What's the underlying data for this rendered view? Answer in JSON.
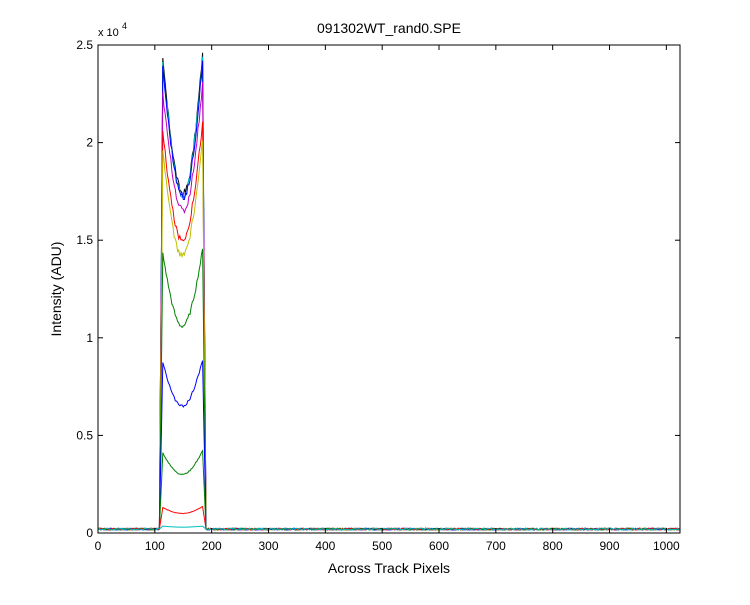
{
  "chart_data": {
    "type": "line",
    "title": "091302WT_rand0.SPE",
    "xlabel": "Across Track Pixels",
    "ylabel": "Intensity (ADU)",
    "xlim": [
      0,
      1024
    ],
    "ylim": [
      0,
      25000
    ],
    "y_scale_label": {
      "base": "x 10",
      "power": "4"
    },
    "x_ticks": [
      0,
      100,
      200,
      300,
      400,
      500,
      600,
      700,
      800,
      900,
      1000
    ],
    "x_tick_labels": [
      "0",
      "100",
      "200",
      "300",
      "400",
      "500",
      "600",
      "700",
      "800",
      "900",
      "1000"
    ],
    "y_ticks": [
      0,
      5000,
      10000,
      15000,
      20000,
      25000
    ],
    "y_tick_labels": [
      "0",
      "0.5",
      "1",
      "1.5",
      "2",
      "2.5"
    ],
    "grid": false,
    "legend": "none",
    "baseline": 200,
    "active_region": {
      "rise_start": 108,
      "rise_end": 114,
      "fall_start": 184,
      "fall_end": 190
    },
    "series": [
      {
        "color": "#000000",
        "left_peak": 24200,
        "valley": 17400,
        "valley_x": 150,
        "right_peak": 24500
      },
      {
        "color": "#00bfbf",
        "left_peak": 24000,
        "valley": 17300,
        "valley_x": 150,
        "right_peak": 24300
      },
      {
        "color": "#0000ff",
        "left_peak": 23800,
        "valley": 17200,
        "valley_x": 150,
        "right_peak": 24100
      },
      {
        "color": "#bf00bf",
        "left_peak": 22500,
        "valley": 16500,
        "valley_x": 150,
        "right_peak": 23000
      },
      {
        "color": "#ff0000",
        "left_peak": 20500,
        "valley": 15000,
        "valley_x": 148,
        "right_peak": 21000
      },
      {
        "color": "#bfbf00",
        "left_peak": 19500,
        "valley": 14200,
        "valley_x": 148,
        "right_peak": 20000
      },
      {
        "color": "#008000",
        "left_peak": 14300,
        "valley": 10600,
        "valley_x": 148,
        "right_peak": 14500
      },
      {
        "color": "#0000ff",
        "left_peak": 8700,
        "valley": 6500,
        "valley_x": 148,
        "right_peak": 8800
      },
      {
        "color": "#008000",
        "left_peak": 4100,
        "valley": 3000,
        "valley_x": 148,
        "right_peak": 4200
      },
      {
        "color": "#ff0000",
        "left_peak": 1300,
        "valley": 1000,
        "valley_x": 148,
        "right_peak": 1350
      },
      {
        "color": "#00bfbf",
        "left_peak": 350,
        "valley": 300,
        "valley_x": 148,
        "right_peak": 350
      }
    ]
  }
}
